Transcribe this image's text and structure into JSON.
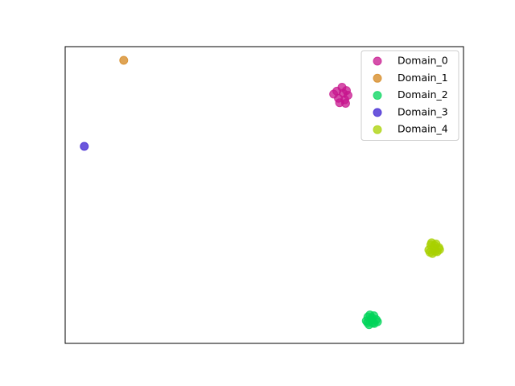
{
  "chart_data": {
    "type": "scatter",
    "xlim": [
      0,
      100
    ],
    "ylim": [
      0,
      100
    ],
    "legend": "upper right",
    "series": [
      {
        "name": "Domain_0",
        "color": "#c7168e",
        "x": [
          68.2,
          69.5,
          70.6,
          71.0,
          70.2,
          68.6,
          67.4,
          69.8,
          70.4,
          68.9
        ],
        "values": [
          85.0,
          86.3,
          85.2,
          83.6,
          82.1,
          82.6,
          84.0,
          84.3,
          80.9,
          81.1
        ]
      },
      {
        "name": "Domain_1",
        "color": "#d4861c",
        "x": [
          14.7
        ],
        "values": [
          95.4
        ]
      },
      {
        "name": "Domain_2",
        "color": "#00d45a",
        "x": [
          76.0,
          77.5,
          78.1,
          77.6,
          76.3,
          75.6,
          76.9,
          77.2,
          76.5,
          78.4,
          75.9,
          77.0
        ],
        "values": [
          8.9,
          9.3,
          8.0,
          6.7,
          6.3,
          7.6,
          7.9,
          6.9,
          9.6,
          7.3,
          7.0,
          8.6
        ]
      },
      {
        "name": "Domain_3",
        "color": "#3a1fd0",
        "x": [
          4.8
        ],
        "values": [
          66.4
        ]
      },
      {
        "name": "Domain_4",
        "color": "#a8d000",
        "x": [
          91.8,
          93.1,
          93.8,
          93.4,
          92.2,
          91.3,
          92.6,
          92.9,
          92.0,
          94.0,
          91.6,
          92.7
        ],
        "values": [
          33.2,
          33.5,
          32.3,
          30.9,
          30.3,
          31.5,
          32.0,
          31.0,
          33.9,
          31.6,
          30.7,
          33.0
        ]
      }
    ]
  }
}
